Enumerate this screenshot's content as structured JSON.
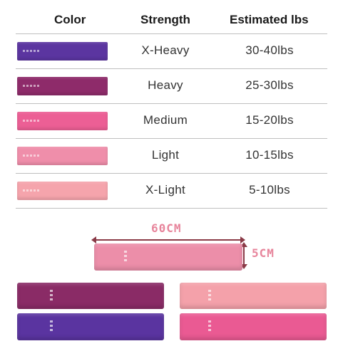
{
  "header": {
    "color": "Color",
    "strength": "Strength",
    "lbs": "Estimated lbs"
  },
  "rows": [
    {
      "strength": "X-Heavy",
      "lbs": "30-40lbs",
      "color": "#5b35a0"
    },
    {
      "strength": "Heavy",
      "lbs": "25-30lbs",
      "color": "#8e2b6a"
    },
    {
      "strength": "Medium",
      "lbs": "15-20lbs",
      "color": "#ec5f95"
    },
    {
      "strength": "Light",
      "lbs": "10-15lbs",
      "color": "#ef8eaa"
    },
    {
      "strength": "X-Light",
      "lbs": "5-10lbs",
      "color": "#f5a4ac"
    }
  ],
  "dimensions": {
    "width": "60CM",
    "height": "5CM"
  },
  "hero_band_color": "#ec8ea9",
  "bottom_bands": [
    {
      "name": "heavy",
      "color": "#8a2b66"
    },
    {
      "name": "x-heavy",
      "color": "#5a34a0"
    },
    {
      "name": "x-light",
      "color": "#f4a1aa"
    },
    {
      "name": "medium",
      "color": "#ea5a93"
    }
  ]
}
